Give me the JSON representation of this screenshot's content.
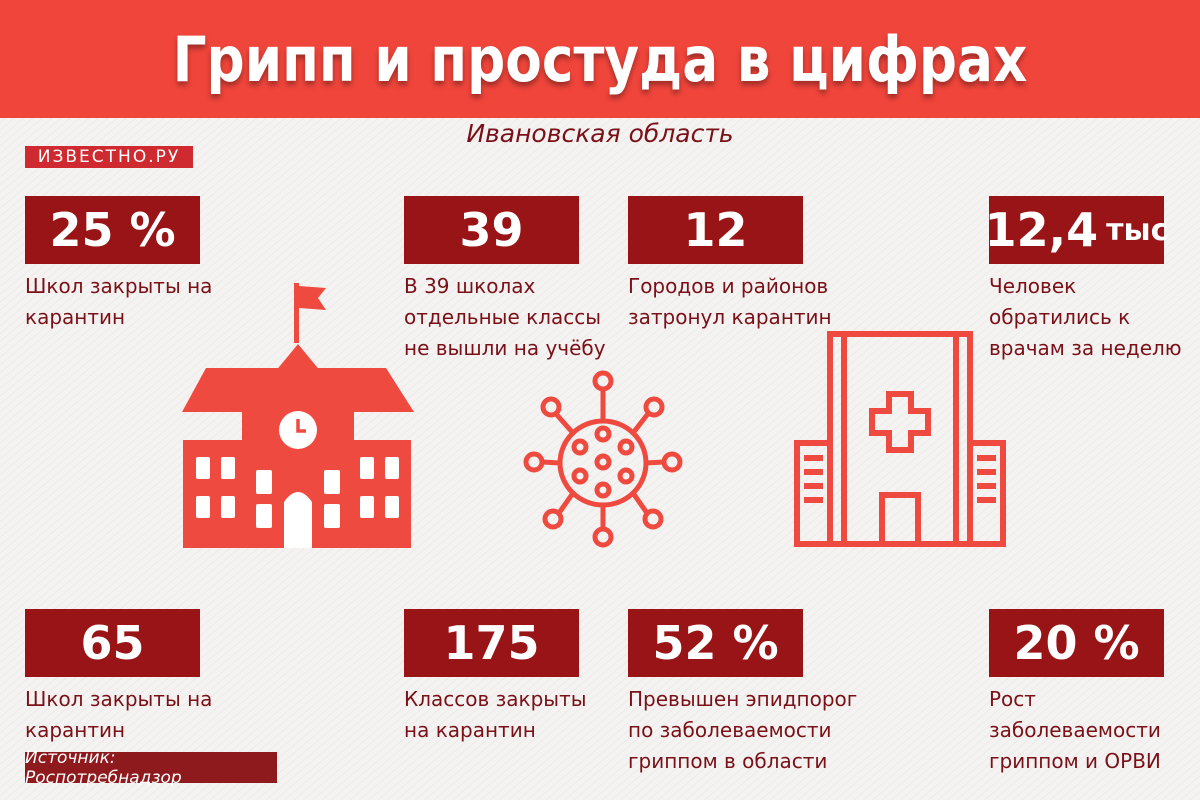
{
  "header": {
    "title": "Грипп и простуда в цифрах"
  },
  "subtitle": "Ивановская область",
  "logo": {
    "text": "ИЗВЕСТНО.РУ"
  },
  "stats": [
    {
      "value": "25 %",
      "unit": "",
      "description": [
        "Школ закрыты на",
        "карантин"
      ]
    },
    {
      "value": "39",
      "unit": "",
      "description": [
        "В 39 школах",
        "отдельные классы",
        "не вышли на учёбу"
      ]
    },
    {
      "value": "12",
      "unit": "",
      "description": [
        "Городов и районов",
        "затронул карантин"
      ]
    },
    {
      "value": "12,4",
      "unit": "тыс",
      "description": [
        "Человек",
        "обратились к",
        "врачам за неделю"
      ]
    },
    {
      "value": "65",
      "unit": "",
      "description": [
        "Школ закрыты на",
        "карантин"
      ]
    },
    {
      "value": "175",
      "unit": "",
      "description": [
        "Классов закрыты",
        "на карантин"
      ]
    },
    {
      "value": "52 %",
      "unit": "",
      "description": [
        "Превышен эпидпорог",
        "по заболеваемости",
        "гриппом в области"
      ]
    },
    {
      "value": "20 %",
      "unit": "",
      "description": [
        "Рост",
        "заболеваемости",
        "гриппом и ОРВИ"
      ]
    }
  ],
  "source": "Источник: Роспотребнадзор",
  "icons": [
    "school-icon",
    "virus-icon",
    "hospital-icon"
  ],
  "colors": {
    "banner": "#f0453b",
    "box": "#981416",
    "text": "#7a1018",
    "icon": "#ef4a3f"
  }
}
